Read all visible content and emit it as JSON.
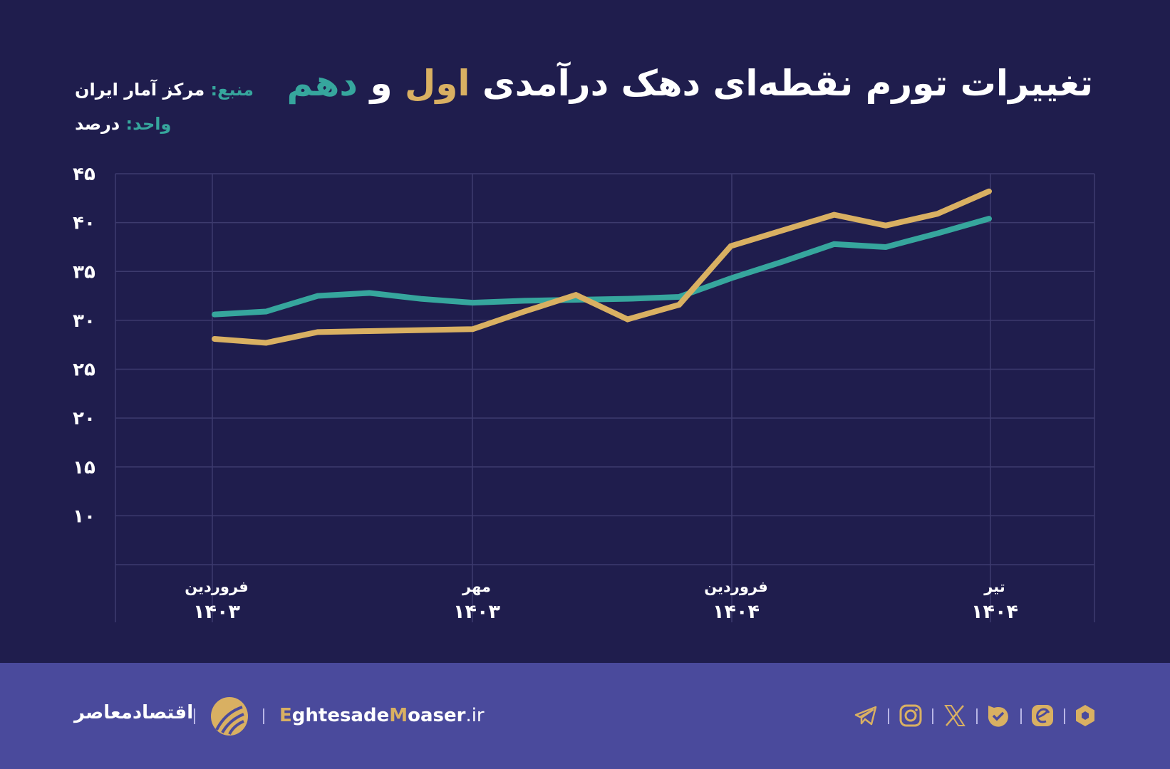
{
  "title": {
    "part1": "تغییرات تورم نقطه‌ای دهک درآمدی ",
    "part2": "اول",
    "part3": " و ",
    "part4": "دهم"
  },
  "meta": {
    "source_label": "منبع:",
    "source_value": " مرکز آمار ایران",
    "unit_label": "واحد:",
    "unit_value": " درصد"
  },
  "colors": {
    "background": "#1f1d4d",
    "footer": "#4a4a9c",
    "gold": "#d9b062",
    "teal": "#36a69d",
    "grid": "#3d3b6e"
  },
  "chart_data": {
    "type": "line",
    "title": "تغییرات تورم نقطه‌ای دهک درآمدی اول و دهم",
    "ylabel": "درصد",
    "ylim": [
      5,
      45
    ],
    "yticks": [
      45,
      40,
      35,
      30,
      25,
      20,
      15,
      10
    ],
    "ytick_labels": [
      "۴۵",
      "۴۰",
      "۳۵",
      "۳۰",
      "۲۵",
      "۲۰",
      "۱۵",
      "۱۰"
    ],
    "x": [
      0,
      1,
      2,
      3,
      4,
      5,
      6,
      7,
      8,
      9,
      10,
      11,
      12,
      13,
      14,
      15
    ],
    "xticks": [
      {
        "index": 0,
        "month": "فروردین",
        "year": "۱۴۰۳"
      },
      {
        "index": 5,
        "month": "مهر",
        "year": "۱۴۰۳"
      },
      {
        "index": 10,
        "month": "فروردین",
        "year": "۱۴۰۴"
      },
      {
        "index": 15,
        "month": "تیر",
        "year": "۱۴۰۴"
      }
    ],
    "grid": true,
    "series": [
      {
        "color": "#36a69d",
        "values": [
          30.6,
          30.9,
          32.5,
          32.8,
          32.2,
          31.8,
          32.0,
          32.1,
          32.2,
          32.4,
          34.3,
          36.0,
          37.8,
          37.5,
          38.9,
          40.4
        ]
      },
      {
        "color": "#d9b062",
        "values": [
          28.1,
          27.7,
          28.8,
          28.9,
          29.0,
          29.1,
          30.9,
          32.6,
          30.1,
          31.6,
          37.6,
          39.2,
          40.8,
          39.7,
          40.9,
          43.2
        ]
      }
    ]
  },
  "footer": {
    "brand_fa": "اقتصادمعاصر",
    "site_e": "E",
    "site_1": "ghtesade",
    "site_m": "M",
    "site_2": "oaser",
    "site_tld": ".ir",
    "icons": [
      "telegram-icon",
      "instagram-icon",
      "x-icon",
      "check-badge-icon",
      "e-app-icon",
      "hexagon-icon"
    ]
  }
}
